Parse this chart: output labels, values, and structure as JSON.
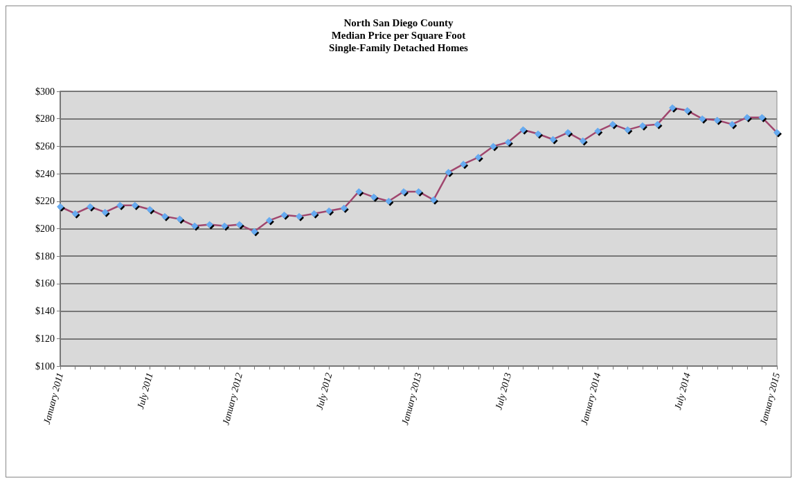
{
  "chart_data": {
    "type": "line",
    "title": "North San Diego County\nMedian Price per Square Foot\nSingle-Family Detached Homes",
    "categories": [
      "January 2011",
      null,
      null,
      null,
      null,
      null,
      "July 2011",
      null,
      null,
      null,
      null,
      null,
      "January 2012",
      null,
      null,
      null,
      null,
      null,
      "July 2012",
      null,
      null,
      null,
      null,
      null,
      "January 2013",
      null,
      null,
      null,
      null,
      null,
      "July 2013",
      null,
      null,
      null,
      null,
      null,
      "January 2014",
      null,
      null,
      null,
      null,
      null,
      "July 2014",
      null,
      null,
      null,
      null,
      null,
      "January 2015"
    ],
    "series": [
      {
        "color": "#a0466e",
        "values": [
          216,
          211,
          216,
          212,
          217,
          217,
          214,
          209,
          207,
          202,
          203,
          202,
          203,
          198,
          206,
          210,
          209,
          211,
          213,
          215,
          227,
          223,
          220,
          227,
          227,
          221,
          241,
          247,
          252,
          260,
          263,
          272,
          269,
          265,
          270,
          264,
          271,
          276,
          272,
          275,
          276,
          288,
          286,
          280,
          279,
          276,
          281,
          281,
          270
        ]
      }
    ],
    "ylim": [
      100,
      300
    ],
    "yticks": [
      {
        "value": 100,
        "label": "$100"
      },
      {
        "value": 120,
        "label": "$120"
      },
      {
        "value": 140,
        "label": "$140"
      },
      {
        "value": 160,
        "label": "$160"
      },
      {
        "value": 180,
        "label": "$180"
      },
      {
        "value": 200,
        "label": "$200"
      },
      {
        "value": 220,
        "label": "$220"
      },
      {
        "value": 240,
        "label": "$240"
      },
      {
        "value": 260,
        "label": "$260"
      },
      {
        "value": 280,
        "label": "$280"
      },
      {
        "value": 300,
        "label": "$300"
      }
    ],
    "grid": "y",
    "marker": "diamond",
    "line_style": "solid"
  }
}
